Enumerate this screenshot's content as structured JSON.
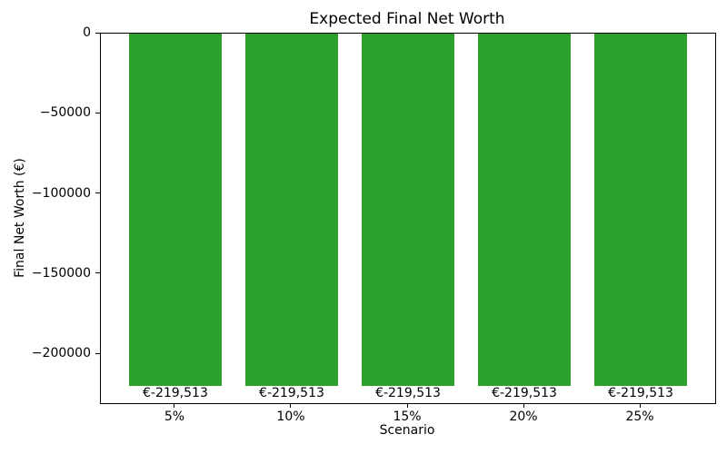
{
  "chart_data": {
    "type": "bar",
    "title": "Expected Final Net Worth",
    "xlabel": "Scenario",
    "ylabel": "Final Net Worth (€)",
    "categories": [
      "5%",
      "10%",
      "15%",
      "20%",
      "25%"
    ],
    "values": [
      -219513,
      -219513,
      -219513,
      -219513,
      -219513
    ],
    "bar_labels": [
      "€-219,513",
      "€-219,513",
      "€-219,513",
      "€-219,513",
      "€-219,513"
    ],
    "bar_color": "#2ca02c",
    "bar_width": 0.8,
    "xlim": [
      -0.64,
      4.64
    ],
    "ylim": [
      -230489,
      0
    ],
    "yticks": [
      0,
      -50000,
      -100000,
      -150000,
      -200000
    ],
    "ytick_labels": [
      "0",
      "−50000",
      "−100000",
      "−150000",
      "−200000"
    ],
    "grid": false,
    "legend": "none",
    "background": "#ffffff",
    "text_color": "#000000"
  }
}
